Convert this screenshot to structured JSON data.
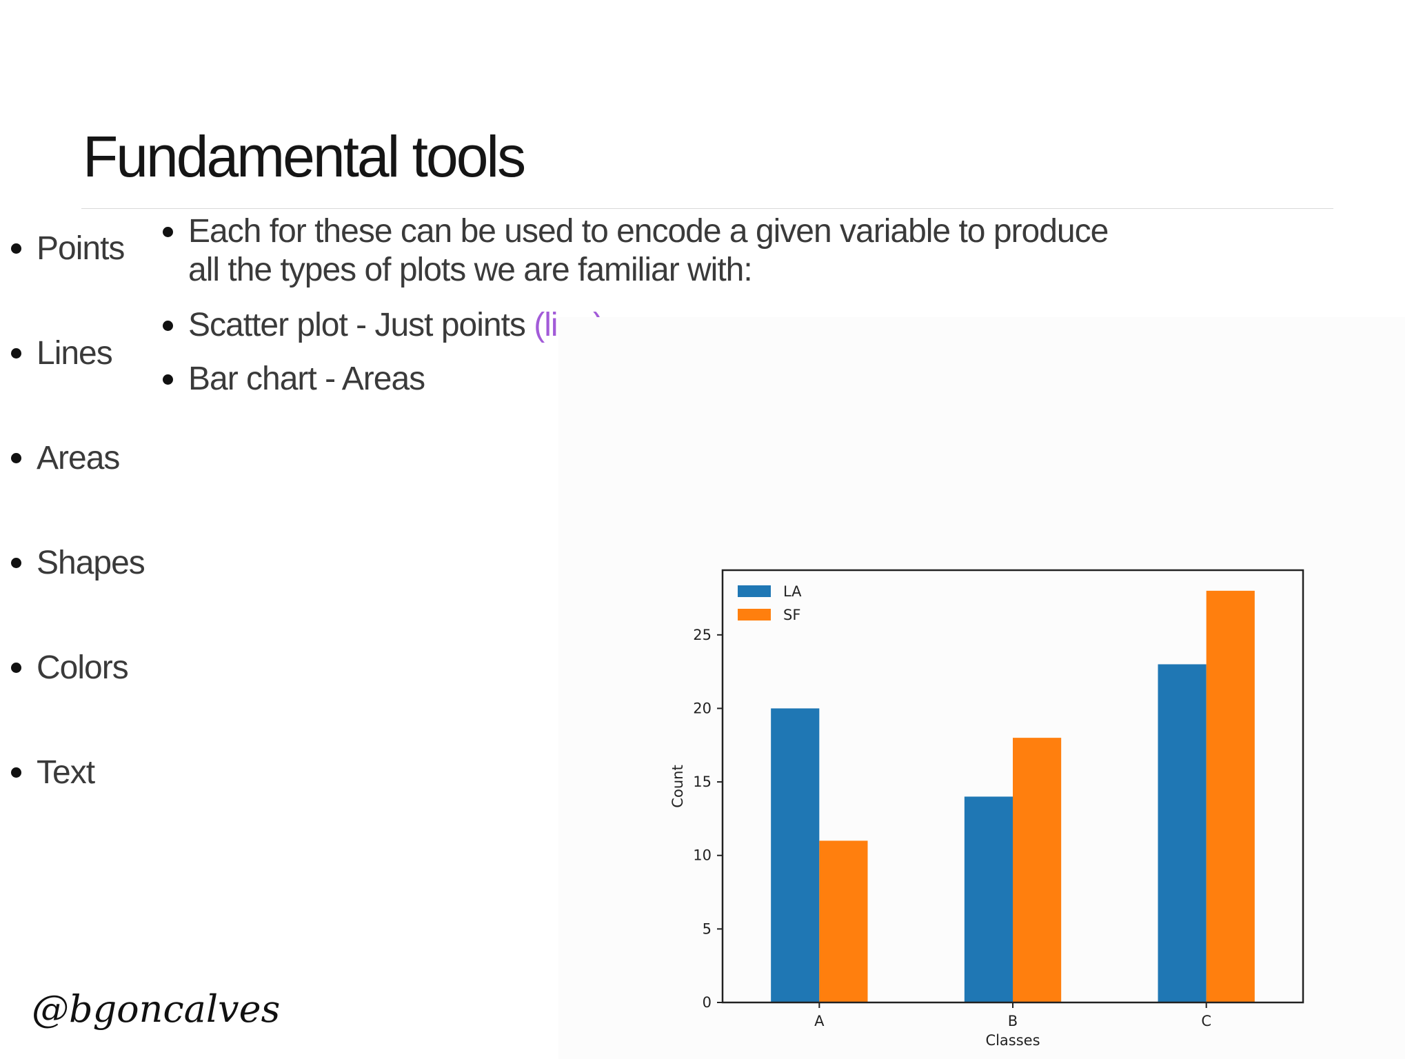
{
  "slide": {
    "title": "Fundamental tools",
    "tools": [
      "Points",
      "Lines",
      "Areas",
      "Shapes",
      "Colors",
      "Text"
    ],
    "detail_lines": {
      "intro_line1": "Each for these can be used to encode a given variable to produce",
      "intro_line2": "all the types of plots we are familiar with:",
      "scatter_prefix": "Scatter plot - Just points ",
      "scatter_accent": "(line)",
      "bar": "Bar chart - Areas"
    },
    "signature": "@bgoncalves",
    "accent_color": "#a25bd8"
  },
  "chart_data": {
    "type": "bar",
    "categories": [
      "A",
      "B",
      "C"
    ],
    "series": [
      {
        "name": "LA",
        "values": [
          20,
          14,
          23
        ],
        "color": "#1f77b4"
      },
      {
        "name": "SF",
        "values": [
          11,
          18,
          28
        ],
        "color": "#ff7f0e"
      }
    ],
    "title": "",
    "xlabel": "Classes",
    "ylabel": "Count",
    "ylim": [
      0,
      29.4
    ],
    "yticks": [
      0,
      5,
      10,
      15,
      20,
      25
    ],
    "grid": false,
    "legend": "top-left"
  }
}
